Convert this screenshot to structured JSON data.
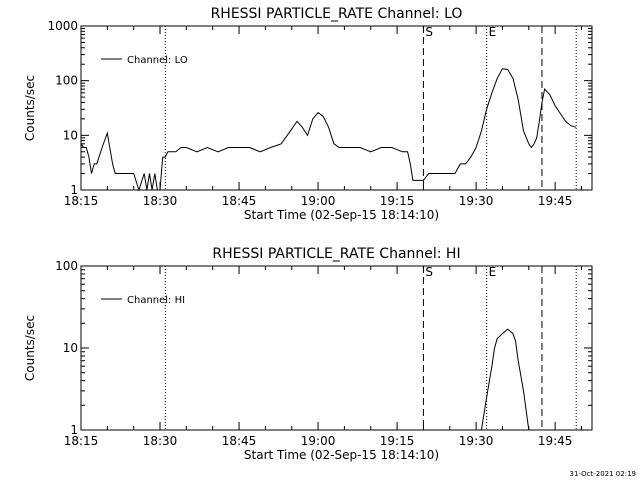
{
  "chart_data": [
    {
      "type": "line",
      "title": "RHESSI PARTICLE_RATE Channel: LO",
      "xlabel": "Start Time (02-Sep-15 18:14:10)",
      "ylabel": "Counts/sec",
      "xlim": [
        "18:15",
        "19:52"
      ],
      "ylim": [
        1,
        1000
      ],
      "yscale": "log",
      "xticks": [
        "18:15",
        "18:30",
        "18:45",
        "19:00",
        "19:15",
        "19:30",
        "19:45"
      ],
      "yticks": [
        "1",
        "10",
        "100",
        "1000"
      ],
      "legend": {
        "placement": "top-left",
        "entries": [
          "Channel: LO"
        ]
      },
      "markers": [
        {
          "label": "S",
          "time": "19:20",
          "style": "dashed"
        },
        {
          "label": "E",
          "time": "19:32",
          "style": "dotted"
        },
        {
          "label": "",
          "time": "18:31",
          "style": "dotted"
        },
        {
          "label": "",
          "time": "19:42.5",
          "style": "dashed"
        },
        {
          "label": "",
          "time": "19:49",
          "style": "dotted"
        }
      ],
      "series": [
        {
          "name": "Channel: LO",
          "x": [
            "18:15",
            "18:15.5",
            "18:16",
            "18:16.5",
            "18:17",
            "18:17.5",
            "18:18",
            "18:19",
            "18:20",
            "18:21",
            "18:21.5",
            "18:22",
            "18:23",
            "18:24",
            "18:25",
            "18:26",
            "18:27",
            "18:27.5",
            "18:28",
            "18:28.5",
            "18:29",
            "18:29.5",
            "18:30",
            "18:30.5",
            "18:31",
            "18:31.5",
            "18:32",
            "18:33",
            "18:34",
            "18:35",
            "18:37",
            "18:39",
            "18:41",
            "18:43",
            "18:45",
            "18:47",
            "18:49",
            "18:51",
            "18:53",
            "18:55",
            "18:56",
            "18:57",
            "18:58",
            "18:59",
            "19:00",
            "19:01",
            "19:02",
            "19:03",
            "19:04",
            "19:06",
            "19:08",
            "19:10",
            "19:12",
            "19:14",
            "19:16",
            "19:17",
            "19:17.5",
            "19:18",
            "19:19",
            "19:20",
            "19:21",
            "19:22",
            "19:23",
            "19:25",
            "19:26",
            "19:27",
            "19:28",
            "19:29",
            "19:30",
            "19:31",
            "19:32",
            "19:33",
            "19:34",
            "19:35",
            "19:36",
            "19:37",
            "19:38",
            "19:39",
            "19:40",
            "19:40.5",
            "19:41",
            "19:41.5",
            "19:42",
            "19:42.5",
            "19:43",
            "19:44",
            "19:45",
            "19:46",
            "19:47",
            "19:48",
            "19:49"
          ],
          "y": [
            7,
            6,
            6,
            4,
            2,
            3,
            3,
            6,
            11,
            3,
            2,
            2,
            2,
            2,
            2,
            1,
            2,
            1,
            2,
            1,
            2,
            1,
            1,
            4,
            4,
            5,
            5,
            5,
            6,
            6,
            5,
            6,
            5,
            6,
            6,
            6,
            5,
            6,
            7,
            13,
            18,
            14,
            10,
            20,
            26,
            22,
            14,
            7,
            6,
            6,
            6,
            5,
            6,
            6,
            5,
            5,
            3,
            1.5,
            1.5,
            1.5,
            2,
            2,
            2,
            2,
            2,
            3,
            3,
            4,
            6,
            12,
            30,
            60,
            110,
            165,
            160,
            110,
            45,
            12,
            7,
            6,
            7,
            9,
            18,
            40,
            70,
            55,
            35,
            25,
            18,
            15,
            14
          ]
        }
      ]
    },
    {
      "type": "line",
      "title": "RHESSI PARTICLE_RATE Channel: HI",
      "xlabel": "Start Time (02-Sep-15 18:14:10)",
      "ylabel": "Counts/sec",
      "xlim": [
        "18:15",
        "19:52"
      ],
      "ylim": [
        1,
        100
      ],
      "yscale": "log",
      "xticks": [
        "18:15",
        "18:30",
        "18:45",
        "19:00",
        "19:15",
        "19:30",
        "19:45"
      ],
      "yticks": [
        "1",
        "10",
        "100"
      ],
      "legend": {
        "placement": "top-left",
        "entries": [
          "Channel: HI"
        ]
      },
      "markers": [
        {
          "label": "S",
          "time": "19:20",
          "style": "dashed"
        },
        {
          "label": "E",
          "time": "19:32",
          "style": "dotted"
        },
        {
          "label": "",
          "time": "18:31",
          "style": "dotted"
        },
        {
          "label": "",
          "time": "19:42.5",
          "style": "dashed"
        },
        {
          "label": "",
          "time": "19:49",
          "style": "dotted"
        }
      ],
      "series": [
        {
          "name": "Channel: HI",
          "x": [
            "19:31",
            "19:32",
            "19:33",
            "19:33.5",
            "19:34",
            "19:35",
            "19:36",
            "19:37",
            "19:37.5",
            "19:38",
            "19:39",
            "19:40"
          ],
          "y": [
            1,
            2.5,
            6,
            10,
            13,
            15,
            17,
            15,
            12,
            7,
            3,
            1
          ]
        }
      ]
    }
  ],
  "footer": {
    "stamp": "31-Oct-2021 02:19"
  }
}
